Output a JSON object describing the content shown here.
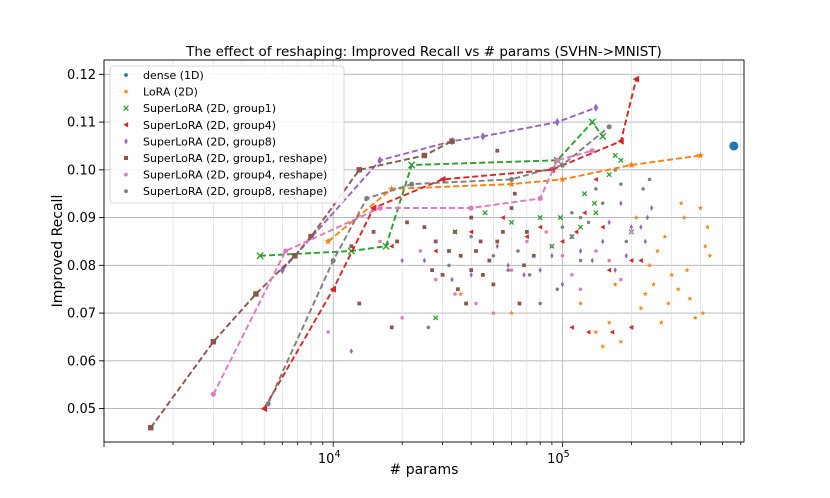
{
  "chart_data": {
    "type": "scatter",
    "title": "The effect of reshaping: Improved Recall vs # params (SVHN->MNIST)",
    "xlabel": "# params",
    "ylabel": "Improved Recall",
    "xscale": "log",
    "xlim": [
      1000,
      620000
    ],
    "ylim": [
      0.043,
      0.123
    ],
    "yticks": [
      0.05,
      0.06,
      0.07,
      0.08,
      0.09,
      0.1,
      0.11,
      0.12
    ],
    "ytick_labels": [
      "0.05",
      "0.06",
      "0.07",
      "0.08",
      "0.09",
      "0.10",
      "0.11",
      "0.12"
    ],
    "xticks": [
      10000,
      100000
    ],
    "xtick_base": "10",
    "xtick_exps": [
      "4",
      "5"
    ],
    "grid": true,
    "legend_position": "top-left",
    "series": [
      {
        "name": "dense (1D)",
        "color": "#1f77b4",
        "marker": "circle",
        "frontier": [],
        "points": [
          [
            560000,
            0.105
          ]
        ]
      },
      {
        "name": "LoRA (2D)",
        "color": "#ff7f0e",
        "marker": "star",
        "frontier": [
          [
            9500,
            0.085
          ],
          [
            18000,
            0.096
          ],
          [
            60000,
            0.097
          ],
          [
            100000,
            0.098
          ],
          [
            200000,
            0.101
          ],
          [
            400000,
            0.103
          ]
        ],
        "points": [
          [
            9500,
            0.085
          ],
          [
            18000,
            0.096
          ],
          [
            100000,
            0.098
          ],
          [
            200000,
            0.101
          ],
          [
            400000,
            0.103
          ],
          [
            36000,
            0.074
          ],
          [
            60000,
            0.07
          ],
          [
            120000,
            0.072
          ],
          [
            140000,
            0.066
          ],
          [
            160000,
            0.068
          ],
          [
            180000,
            0.064
          ],
          [
            200000,
            0.067
          ],
          [
            220000,
            0.071
          ],
          [
            240000,
            0.08
          ],
          [
            260000,
            0.083
          ],
          [
            280000,
            0.086
          ],
          [
            300000,
            0.078
          ],
          [
            320000,
            0.075
          ],
          [
            340000,
            0.09
          ],
          [
            360000,
            0.073
          ],
          [
            380000,
            0.069
          ],
          [
            420000,
            0.084
          ],
          [
            430000,
            0.088
          ],
          [
            400000,
            0.092
          ],
          [
            330000,
            0.093
          ],
          [
            250000,
            0.076
          ],
          [
            230000,
            0.074
          ],
          [
            170000,
            0.076
          ],
          [
            270000,
            0.068
          ],
          [
            150000,
            0.063
          ],
          [
            210000,
            0.09
          ],
          [
            350000,
            0.079
          ],
          [
            290000,
            0.072
          ],
          [
            440000,
            0.082
          ],
          [
            410000,
            0.07
          ]
        ]
      },
      {
        "name": "SuperLoRA (2D, group1)",
        "color": "#2ca02c",
        "marker": "x",
        "frontier": [
          [
            4800,
            0.082
          ],
          [
            12000,
            0.083
          ],
          [
            17000,
            0.084
          ],
          [
            22000,
            0.101
          ],
          [
            95000,
            0.102
          ],
          [
            135000,
            0.11
          ],
          [
            150000,
            0.107
          ]
        ],
        "points": [
          [
            4800,
            0.082
          ],
          [
            12000,
            0.083
          ],
          [
            17000,
            0.084
          ],
          [
            22000,
            0.101
          ],
          [
            95000,
            0.102
          ],
          [
            135000,
            0.11
          ],
          [
            150000,
            0.107
          ],
          [
            28000,
            0.069
          ],
          [
            34000,
            0.087
          ],
          [
            46000,
            0.091
          ],
          [
            60000,
            0.089
          ],
          [
            80000,
            0.09
          ],
          [
            98000,
            0.09
          ],
          [
            110000,
            0.086
          ],
          [
            125000,
            0.095
          ],
          [
            138000,
            0.093
          ],
          [
            160000,
            0.099
          ],
          [
            180000,
            0.102
          ],
          [
            200000,
            0.087
          ],
          [
            120000,
            0.088
          ],
          [
            90000,
            0.084
          ],
          [
            140000,
            0.091
          ],
          [
            170000,
            0.103
          ]
        ]
      },
      {
        "name": "SuperLoRA (2D, group4)",
        "color": "#d62728",
        "marker": "triangle-left",
        "frontier": [
          [
            5000,
            0.05
          ],
          [
            10000,
            0.075
          ],
          [
            15000,
            0.092
          ],
          [
            30000,
            0.098
          ],
          [
            90000,
            0.1
          ],
          [
            180000,
            0.106
          ],
          [
            210000,
            0.119
          ]
        ],
        "points": [
          [
            5000,
            0.05
          ],
          [
            10000,
            0.075
          ],
          [
            15000,
            0.092
          ],
          [
            30000,
            0.098
          ],
          [
            90000,
            0.1
          ],
          [
            180000,
            0.106
          ],
          [
            210000,
            0.119
          ],
          [
            18000,
            0.084
          ],
          [
            28000,
            0.083
          ],
          [
            40000,
            0.087
          ],
          [
            55000,
            0.09
          ],
          [
            70000,
            0.086
          ],
          [
            80000,
            0.088
          ],
          [
            100000,
            0.085
          ],
          [
            115000,
            0.087
          ],
          [
            125000,
            0.091
          ],
          [
            140000,
            0.098
          ],
          [
            150000,
            0.088
          ],
          [
            160000,
            0.079
          ],
          [
            200000,
            0.081
          ],
          [
            220000,
            0.081
          ],
          [
            130000,
            0.066
          ],
          [
            110000,
            0.067
          ],
          [
            165000,
            0.066
          ],
          [
            200000,
            0.067
          ]
        ]
      },
      {
        "name": "SuperLoRA (2D, group8)",
        "color": "#9467bd",
        "marker": "diamond",
        "frontier": [
          [
            6000,
            0.079
          ],
          [
            16000,
            0.102
          ],
          [
            33000,
            0.106
          ],
          [
            45000,
            0.107
          ],
          [
            95000,
            0.11
          ],
          [
            140000,
            0.113
          ]
        ],
        "points": [
          [
            6000,
            0.079
          ],
          [
            16000,
            0.102
          ],
          [
            33000,
            0.106
          ],
          [
            45000,
            0.107
          ],
          [
            95000,
            0.11
          ],
          [
            140000,
            0.113
          ],
          [
            12000,
            0.062
          ],
          [
            20000,
            0.081
          ],
          [
            25000,
            0.081
          ],
          [
            33000,
            0.077
          ],
          [
            40000,
            0.078
          ],
          [
            52000,
            0.084
          ],
          [
            58000,
            0.08
          ],
          [
            68000,
            0.078
          ],
          [
            80000,
            0.079
          ],
          [
            100000,
            0.076
          ],
          [
            120000,
            0.083
          ],
          [
            135000,
            0.081
          ],
          [
            150000,
            0.085
          ],
          [
            170000,
            0.079
          ],
          [
            190000,
            0.082
          ],
          [
            200000,
            0.088
          ],
          [
            220000,
            0.088
          ],
          [
            235000,
            0.09
          ],
          [
            245000,
            0.092
          ],
          [
            180000,
            0.093
          ],
          [
            160000,
            0.089
          ],
          [
            110000,
            0.086
          ],
          [
            90000,
            0.082
          ],
          [
            230000,
            0.085
          ]
        ]
      },
      {
        "name": "SuperLoRA (2D, group1, reshape)",
        "color": "#8c564b",
        "marker": "square",
        "frontier": [
          [
            1600,
            0.046
          ],
          [
            3000,
            0.064
          ],
          [
            4600,
            0.074
          ],
          [
            6800,
            0.082
          ],
          [
            8000,
            0.086
          ],
          [
            13000,
            0.1
          ],
          [
            25000,
            0.103
          ],
          [
            33000,
            0.106
          ]
        ],
        "points": [
          [
            1600,
            0.046
          ],
          [
            3000,
            0.064
          ],
          [
            4600,
            0.074
          ],
          [
            6800,
            0.082
          ],
          [
            8000,
            0.086
          ],
          [
            13000,
            0.1
          ],
          [
            25000,
            0.103
          ],
          [
            33000,
            0.106
          ],
          [
            12000,
            0.084
          ],
          [
            13000,
            0.072
          ],
          [
            15000,
            0.087
          ],
          [
            18000,
            0.067
          ],
          [
            19000,
            0.085
          ],
          [
            21000,
            0.089
          ],
          [
            25000,
            0.088
          ],
          [
            27000,
            0.079
          ],
          [
            28000,
            0.085
          ],
          [
            30000,
            0.078
          ],
          [
            32000,
            0.083
          ],
          [
            34000,
            0.087
          ],
          [
            35000,
            0.075
          ],
          [
            36000,
            0.082
          ],
          [
            38000,
            0.072
          ],
          [
            40000,
            0.079
          ],
          [
            42000,
            0.083
          ],
          [
            44000,
            0.085
          ],
          [
            45000,
            0.078
          ],
          [
            48000,
            0.081
          ],
          [
            50000,
            0.076
          ],
          [
            52000,
            0.085
          ],
          [
            55000,
            0.087
          ],
          [
            60000,
            0.092
          ],
          [
            62000,
            0.095
          ],
          [
            65000,
            0.072
          ],
          [
            68000,
            0.08
          ],
          [
            70000,
            0.087
          ],
          [
            75000,
            0.082
          ],
          [
            52000,
            0.104
          ],
          [
            40000,
            0.09
          ]
        ]
      },
      {
        "name": "SuperLoRA (2D, group4, reshape)",
        "color": "#e377c2",
        "marker": "circle-small",
        "frontier": [
          [
            3000,
            0.053
          ],
          [
            6200,
            0.083
          ],
          [
            16000,
            0.092
          ],
          [
            40000,
            0.092
          ],
          [
            80000,
            0.094
          ],
          [
            95000,
            0.102
          ],
          [
            135000,
            0.104
          ]
        ],
        "points": [
          [
            3000,
            0.053
          ],
          [
            6200,
            0.083
          ],
          [
            16000,
            0.092
          ],
          [
            40000,
            0.092
          ],
          [
            80000,
            0.094
          ],
          [
            95000,
            0.102
          ],
          [
            135000,
            0.104
          ],
          [
            9500,
            0.066
          ],
          [
            16000,
            0.085
          ],
          [
            20000,
            0.069
          ],
          [
            24000,
            0.083
          ],
          [
            28000,
            0.077
          ],
          [
            34000,
            0.074
          ],
          [
            42000,
            0.072
          ],
          [
            50000,
            0.07
          ],
          [
            60000,
            0.079
          ],
          [
            70000,
            0.085
          ],
          [
            85000,
            0.087
          ],
          [
            100000,
            0.082
          ],
          [
            110000,
            0.078
          ],
          [
            120000,
            0.075
          ],
          [
            140000,
            0.083
          ],
          [
            160000,
            0.081
          ],
          [
            180000,
            0.077
          ],
          [
            200000,
            0.087
          ]
        ]
      },
      {
        "name": "SuperLoRA (2D, group8, reshape)",
        "color": "#7f7f7f",
        "marker": "circle-small",
        "frontier": [
          [
            5200,
            0.051
          ],
          [
            10000,
            0.081
          ],
          [
            14000,
            0.094
          ],
          [
            22000,
            0.097
          ],
          [
            60000,
            0.098
          ],
          [
            100000,
            0.101
          ],
          [
            160000,
            0.109
          ]
        ],
        "points": [
          [
            5200,
            0.051
          ],
          [
            10000,
            0.081
          ],
          [
            14000,
            0.094
          ],
          [
            22000,
            0.097
          ],
          [
            60000,
            0.098
          ],
          [
            100000,
            0.101
          ],
          [
            160000,
            0.109
          ],
          [
            26000,
            0.067
          ],
          [
            32000,
            0.08
          ],
          [
            40000,
            0.086
          ],
          [
            50000,
            0.082
          ],
          [
            58000,
            0.079
          ],
          [
            64000,
            0.083
          ],
          [
            72000,
            0.078
          ],
          [
            90000,
            0.084
          ],
          [
            100000,
            0.088
          ],
          [
            110000,
            0.091
          ],
          [
            120000,
            0.09
          ],
          [
            130000,
            0.089
          ],
          [
            140000,
            0.096
          ],
          [
            150000,
            0.093
          ],
          [
            170000,
            0.1
          ],
          [
            180000,
            0.097
          ],
          [
            200000,
            0.101
          ],
          [
            225000,
            0.096
          ],
          [
            240000,
            0.098
          ],
          [
            120000,
            0.081
          ],
          [
            95000,
            0.075
          ],
          [
            80000,
            0.072
          ],
          [
            190000,
            0.085
          ]
        ]
      }
    ]
  }
}
